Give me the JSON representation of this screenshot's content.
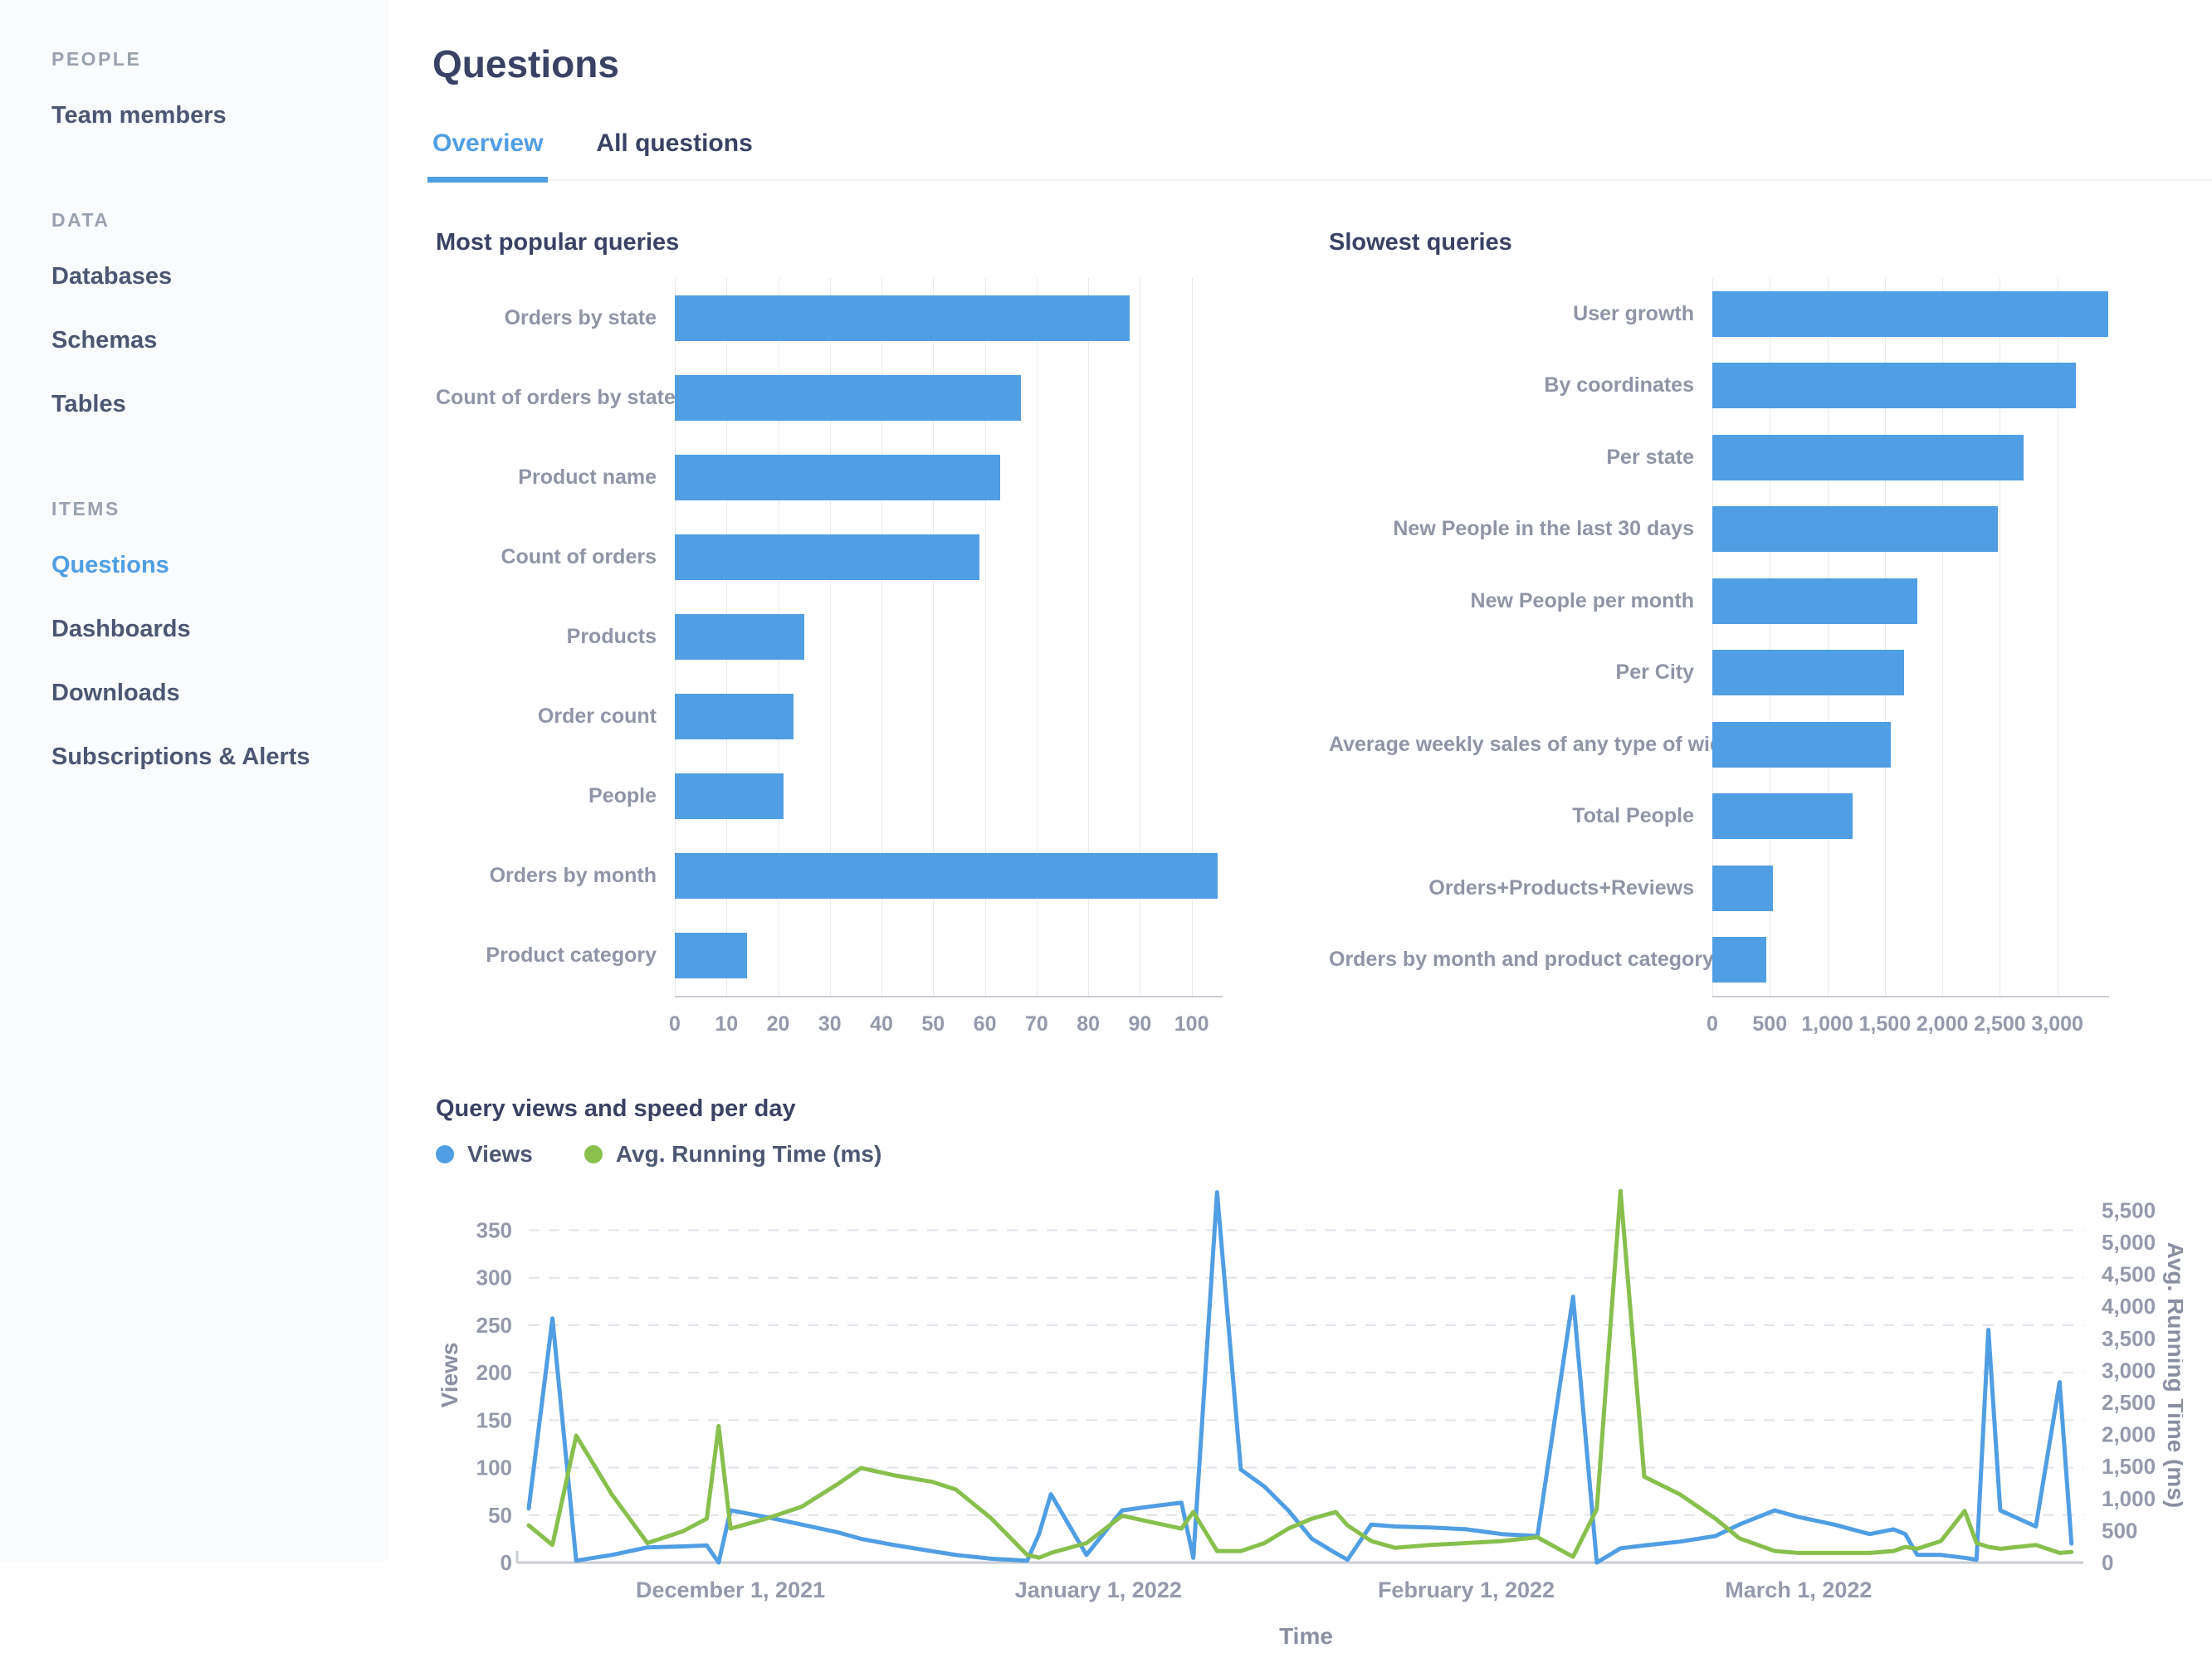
{
  "colors": {
    "accent_blue": "#509EE3",
    "brand_green": "#88BF4D",
    "heading": "#394264",
    "muted_label": "#949AAB"
  },
  "sidebar": {
    "sections": [
      {
        "label": "PEOPLE",
        "items": [
          {
            "label": "Team members",
            "active": false
          }
        ]
      },
      {
        "label": "DATA",
        "items": [
          {
            "label": "Databases",
            "active": false
          },
          {
            "label": "Schemas",
            "active": false
          },
          {
            "label": "Tables",
            "active": false
          }
        ]
      },
      {
        "label": "ITEMS",
        "items": [
          {
            "label": "Questions",
            "active": true
          },
          {
            "label": "Dashboards",
            "active": false
          },
          {
            "label": "Downloads",
            "active": false
          },
          {
            "label": "Subscriptions & Alerts",
            "active": false
          }
        ]
      }
    ]
  },
  "header": {
    "title": "Questions",
    "tabs": [
      {
        "label": "Overview",
        "active": true
      },
      {
        "label": "All questions",
        "active": false
      }
    ]
  },
  "chart_data": [
    {
      "type": "bar",
      "orientation": "horizontal",
      "title": "Most popular queries",
      "categories": [
        "Orders by state",
        "Count of orders by state",
        "Product name",
        "Count of orders",
        "Products",
        "Order count",
        "People",
        "Orders by month",
        "Product category"
      ],
      "values": [
        88,
        67,
        63,
        59,
        25,
        23,
        21,
        105,
        14
      ],
      "xlim": [
        0,
        106
      ],
      "ticks": [
        0,
        10,
        20,
        30,
        40,
        50,
        60,
        70,
        80,
        90,
        100
      ],
      "tick_labels": [
        "0",
        "10",
        "20",
        "30",
        "40",
        "50",
        "60",
        "70",
        "80",
        "90",
        "100"
      ],
      "grid": "vertical",
      "bar_color": "#509EE3"
    },
    {
      "type": "bar",
      "orientation": "horizontal",
      "title": "Slowest queries",
      "categories": [
        "User growth",
        "By coordinates",
        "Per state",
        "New People in the last 30 days",
        "New People per month",
        "Per City",
        "Average weekly sales of any type of widget",
        "Total People",
        "Orders+Products+Reviews",
        "Orders by month and product category"
      ],
      "values": [
        3440,
        3160,
        2710,
        2480,
        1780,
        1670,
        1550,
        1220,
        530,
        470
      ],
      "xlim": [
        0,
        3450
      ],
      "ticks": [
        0,
        500,
        1000,
        1500,
        2000,
        2500,
        3000
      ],
      "tick_labels": [
        "0",
        "500",
        "1,000",
        "1,500",
        "2,000",
        "2,500",
        "3,000"
      ],
      "grid": "vertical",
      "bar_color": "#509EE3"
    },
    {
      "type": "line",
      "title": "Query views and speed per day",
      "xlabel": "Time",
      "ylabel_left": "Views",
      "ylabel_right": "Avg. Running Time (ms)",
      "legend_position": "top",
      "grid": "horizontal-dashed",
      "ylim_left": [
        0,
        395
      ],
      "ylim_right": [
        0,
        5854
      ],
      "yticks_left": [
        0,
        50,
        100,
        150,
        200,
        250,
        300,
        350
      ],
      "ytick_labels_left": [
        "0",
        "50",
        "100",
        "150",
        "200",
        "250",
        "300",
        "350"
      ],
      "yticks_right": [
        0,
        500,
        1000,
        1500,
        2000,
        2500,
        3000,
        3500,
        4000,
        4500,
        5000,
        5500
      ],
      "ytick_labels_right": [
        "0",
        "500",
        "1,000",
        "1,500",
        "2,000",
        "2,500",
        "3,000",
        "3,500",
        "4,000",
        "4,500",
        "5,000",
        "5,500"
      ],
      "x_range_days": [
        0,
        131
      ],
      "x_month_ticks": [
        {
          "day": 17,
          "label": "December 1, 2021"
        },
        {
          "day": 48,
          "label": "January 1, 2022"
        },
        {
          "day": 79,
          "label": "February 1, 2022"
        },
        {
          "day": 107,
          "label": "March 1, 2022"
        }
      ],
      "series": [
        {
          "name": "Views",
          "axis": "left",
          "color": "#509EE3",
          "points_day_value": [
            [
              0,
              57
            ],
            [
              2,
              257
            ],
            [
              4,
              2
            ],
            [
              7,
              8
            ],
            [
              10,
              16
            ],
            [
              13,
              17
            ],
            [
              15,
              18
            ],
            [
              16,
              0
            ],
            [
              17,
              55
            ],
            [
              20,
              48
            ],
            [
              23,
              40
            ],
            [
              26,
              32
            ],
            [
              28,
              25
            ],
            [
              31,
              18
            ],
            [
              34,
              12
            ],
            [
              36,
              8
            ],
            [
              39,
              4
            ],
            [
              42,
              2
            ],
            [
              43,
              30
            ],
            [
              44,
              72
            ],
            [
              47,
              8
            ],
            [
              50,
              55
            ],
            [
              53,
              60
            ],
            [
              55,
              63
            ],
            [
              56,
              5
            ],
            [
              58,
              390
            ],
            [
              60,
              98
            ],
            [
              62,
              80
            ],
            [
              64,
              55
            ],
            [
              66,
              25
            ],
            [
              68,
              10
            ],
            [
              69,
              3
            ],
            [
              71,
              40
            ],
            [
              73,
              38
            ],
            [
              76,
              37
            ],
            [
              79,
              35
            ],
            [
              82,
              30
            ],
            [
              85,
              28
            ],
            [
              88,
              280
            ],
            [
              90,
              0
            ],
            [
              92,
              15
            ],
            [
              94,
              18
            ],
            [
              97,
              22
            ],
            [
              100,
              28
            ],
            [
              102,
              40
            ],
            [
              105,
              55
            ],
            [
              107,
              48
            ],
            [
              110,
              40
            ],
            [
              113,
              30
            ],
            [
              115,
              35
            ],
            [
              116,
              30
            ],
            [
              117,
              8
            ],
            [
              119,
              8
            ],
            [
              121,
              5
            ],
            [
              122,
              3
            ],
            [
              123,
              245
            ],
            [
              124,
              55
            ],
            [
              127,
              38
            ],
            [
              129,
              190
            ],
            [
              130,
              20
            ]
          ]
        },
        {
          "name": "Avg. Running Time (ms)",
          "axis": "right",
          "color": "#88BF4D",
          "points_day_value": [
            [
              0,
              580
            ],
            [
              2,
              275
            ],
            [
              4,
              1980
            ],
            [
              7,
              1065
            ],
            [
              10,
              305
            ],
            [
              13,
              490
            ],
            [
              15,
              685
            ],
            [
              16,
              2130
            ],
            [
              17,
              530
            ],
            [
              20,
              685
            ],
            [
              23,
              870
            ],
            [
              26,
              1220
            ],
            [
              28,
              1475
            ],
            [
              31,
              1355
            ],
            [
              34,
              1260
            ],
            [
              36,
              1140
            ],
            [
              39,
              685
            ],
            [
              42,
              120
            ],
            [
              43,
              75
            ],
            [
              44,
              150
            ],
            [
              47,
              305
            ],
            [
              50,
              730
            ],
            [
              53,
              610
            ],
            [
              55,
              530
            ],
            [
              56,
              790
            ],
            [
              58,
              180
            ],
            [
              60,
              180
            ],
            [
              62,
              305
            ],
            [
              64,
              530
            ],
            [
              66,
              685
            ],
            [
              68,
              790
            ],
            [
              69,
              580
            ],
            [
              71,
              335
            ],
            [
              73,
              230
            ],
            [
              76,
              275
            ],
            [
              79,
              305
            ],
            [
              82,
              335
            ],
            [
              85,
              395
            ],
            [
              88,
              90
            ],
            [
              90,
              835
            ],
            [
              92,
              5800
            ],
            [
              94,
              1340
            ],
            [
              97,
              1065
            ],
            [
              100,
              685
            ],
            [
              102,
              380
            ],
            [
              105,
              180
            ],
            [
              107,
              150
            ],
            [
              110,
              150
            ],
            [
              113,
              150
            ],
            [
              115,
              180
            ],
            [
              116,
              245
            ],
            [
              117,
              215
            ],
            [
              119,
              335
            ],
            [
              121,
              805
            ],
            [
              122,
              305
            ],
            [
              123,
              245
            ],
            [
              124,
              215
            ],
            [
              127,
              275
            ],
            [
              129,
              150
            ],
            [
              130,
              165
            ]
          ]
        }
      ]
    }
  ]
}
